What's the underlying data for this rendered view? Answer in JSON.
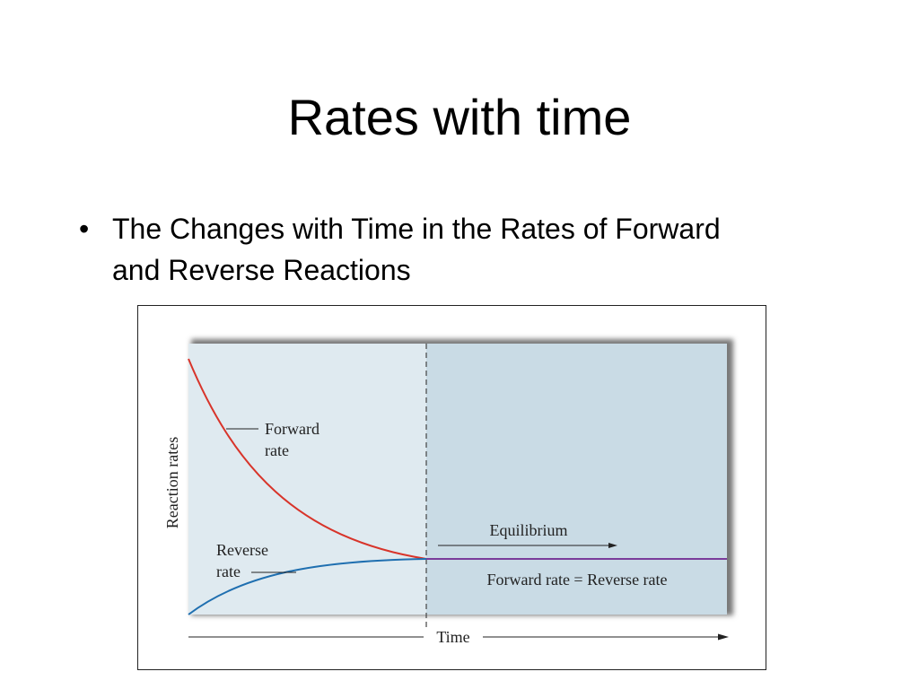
{
  "header": {
    "title": "Rates with time"
  },
  "bullets": [
    "The Changes with Time in the Rates of Forward and Reverse Reactions"
  ],
  "figure": {
    "y_axis_label": "Reaction rates",
    "x_axis_label": "Time",
    "forward_label": [
      "Forward",
      "rate"
    ],
    "reverse_label": [
      "Reverse",
      "rate"
    ],
    "equilibrium_label": "Equilibrium",
    "equality_label": "Forward rate = Reverse rate"
  }
}
